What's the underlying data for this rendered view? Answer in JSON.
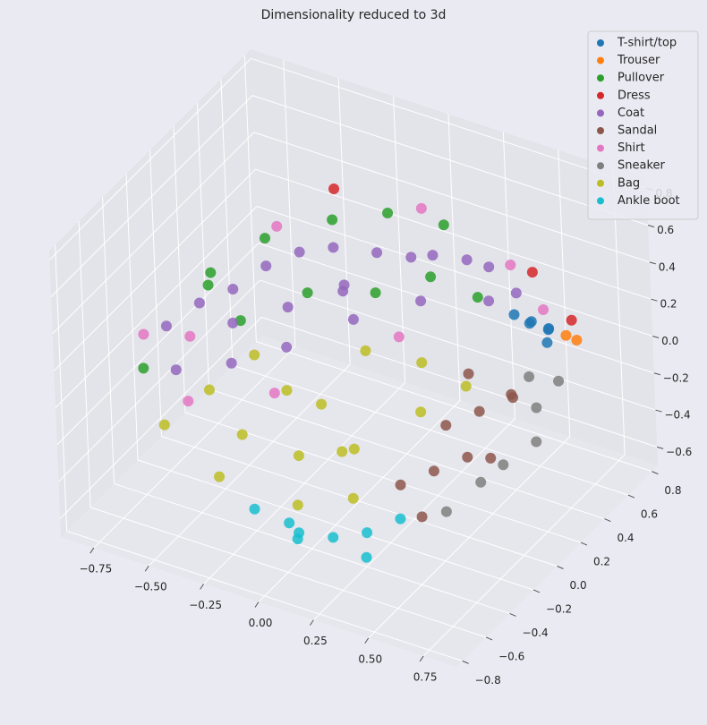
{
  "chart_data": {
    "type": "scatter3d",
    "title": "Dimensionality reduced to 3d",
    "xlim": [
      -0.9,
      0.9
    ],
    "ylim": [
      -0.85,
      0.85
    ],
    "zlim": [
      -0.7,
      0.85
    ],
    "xticks": [
      {
        "value": -0.75,
        "label": "−0.75"
      },
      {
        "value": -0.5,
        "label": "−0.50"
      },
      {
        "value": -0.25,
        "label": "−0.25"
      },
      {
        "value": 0,
        "label": "0.00"
      },
      0.25,
      {
        "value": 0.5,
        "label": "0.50"
      },
      0.75
    ],
    "yticks": [
      {
        "value": -0.8,
        "label": "−0.8"
      },
      {
        "value": -0.6,
        "label": "−0.6"
      },
      {
        "value": -0.4,
        "label": "−0.4"
      },
      {
        "value": -0.2,
        "label": "−0.2"
      },
      {
        "value": 0,
        "label": "0.0"
      },
      0.2,
      0.4,
      0.6,
      0.8
    ],
    "zticks": [
      {
        "value": -0.6,
        "label": "−0.6"
      },
      {
        "value": -0.4,
        "label": "−0.4"
      },
      {
        "value": -0.2,
        "label": "−0.2"
      },
      {
        "value": 0,
        "label": "0.0"
      },
      0.2,
      0.4,
      0.6,
      0.8
    ],
    "grid": true,
    "legend": "upper right",
    "series": [
      {
        "name": "T-shirt/top",
        "color": "#1f77b4",
        "x": [
          0.6,
          0.65,
          0.55,
          0.62,
          0.58,
          0.68
        ],
        "y": [
          0.4,
          0.45,
          0.35,
          0.5,
          0.42,
          0.38
        ],
        "z": [
          0.25,
          0.2,
          0.3,
          0.15,
          0.22,
          0.18
        ]
      },
      {
        "name": "Trouser",
        "color": "#ff7f0e",
        "x": [
          0.7,
          0.72
        ],
        "y": [
          0.5,
          0.55
        ],
        "z": [
          0.15,
          0.1
        ]
      },
      {
        "name": "Pullover",
        "color": "#2ca02c",
        "x": [
          -0.5,
          -0.3,
          -0.1,
          0.1,
          -0.6,
          -0.7,
          0.2,
          -0.2,
          0.0,
          -0.4,
          0.3,
          -0.8
        ],
        "y": [
          0.2,
          0.4,
          0.5,
          0.6,
          -0.1,
          0.1,
          0.3,
          0.0,
          0.2,
          -0.2,
          0.5,
          -0.3
        ],
        "z": [
          0.4,
          0.45,
          0.5,
          0.45,
          0.3,
          0.2,
          0.4,
          0.35,
          0.3,
          0.25,
          0.2,
          -0.1
        ]
      },
      {
        "name": "Dress",
        "color": "#d62728",
        "x": [
          0.7,
          0.5,
          -0.4
        ],
        "y": [
          0.55,
          0.6,
          0.6
        ],
        "z": [
          0.2,
          0.35,
          0.45
        ]
      },
      {
        "name": "Coat",
        "color": "#9467bd",
        "x": [
          -0.8,
          -0.7,
          -0.6,
          -0.5,
          -0.4,
          -0.3,
          -0.2,
          -0.1,
          0,
          0.1,
          0.2,
          0.3,
          -0.65,
          -0.45,
          -0.25,
          -0.05,
          0.15,
          -0.55,
          -0.35,
          -0.15,
          0.35,
          0.45
        ],
        "y": [
          -0.1,
          0,
          0.1,
          0.2,
          0.3,
          0.4,
          0.3,
          0.4,
          0.5,
          0.5,
          0.6,
          0.6,
          -0.3,
          -0.2,
          -0.1,
          0.1,
          0.3,
          0.0,
          0.1,
          0.2,
          0.5,
          0.55
        ],
        "z": [
          0.0,
          0.1,
          0.15,
          0.25,
          0.3,
          0.3,
          0.2,
          0.35,
          0.3,
          0.35,
          0.3,
          0.3,
          -0.05,
          0.0,
          0.1,
          0.2,
          0.25,
          0.05,
          0.15,
          0.25,
          0.2,
          0.25
        ]
      },
      {
        "name": "Sandal",
        "color": "#8c564b",
        "x": [
          0.3,
          0.4,
          0.5,
          0.35,
          0.45,
          0.55,
          0.25,
          0.4,
          0.5,
          0.3
        ],
        "y": [
          0.2,
          0.3,
          0.4,
          0.0,
          0.1,
          0.3,
          -0.1,
          -0.2,
          0.2,
          0.4
        ],
        "z": [
          -0.3,
          -0.25,
          -0.2,
          -0.4,
          -0.35,
          -0.1,
          -0.45,
          -0.5,
          -0.4,
          -0.15
        ]
      },
      {
        "name": "Shirt",
        "color": "#e377c2",
        "x": [
          -0.85,
          -0.75,
          -0.5,
          0.0,
          0.4,
          0.6,
          -0.2,
          0.1,
          -0.6
        ],
        "y": [
          -0.2,
          0.0,
          0.3,
          0.6,
          0.6,
          0.5,
          -0.3,
          0.2,
          -0.3
        ],
        "z": [
          0.0,
          -0.1,
          0.4,
          0.5,
          0.35,
          0.25,
          0.0,
          0.1,
          -0.2
        ]
      },
      {
        "name": "Sneaker",
        "color": "#7f7f7f",
        "x": [
          0.55,
          0.6,
          0.5,
          0.45,
          0.6,
          0.4,
          0.55
        ],
        "y": [
          0.5,
          0.4,
          0.3,
          0.2,
          0.6,
          0.0,
          0.45
        ],
        "z": [
          -0.3,
          -0.4,
          -0.5,
          -0.55,
          -0.2,
          -0.6,
          -0.1
        ]
      },
      {
        "name": "Bag",
        "color": "#bcbd22",
        "x": [
          -0.5,
          -0.3,
          -0.1,
          0.1,
          0.3,
          -0.4,
          -0.2,
          0.0,
          0.2,
          -0.3,
          0.0,
          0.2,
          0.4,
          -0.1,
          0.1,
          -0.6
        ],
        "y": [
          -0.3,
          -0.4,
          -0.3,
          -0.2,
          0.0,
          -0.1,
          -0.2,
          -0.5,
          -0.4,
          -0.6,
          0.1,
          0.2,
          0.2,
          -0.1,
          -0.3,
          -0.5
        ],
        "z": [
          -0.1,
          -0.2,
          -0.3,
          -0.25,
          -0.1,
          0.0,
          -0.05,
          -0.4,
          -0.35,
          -0.3,
          0.05,
          0.0,
          -0.05,
          -0.15,
          -0.2,
          -0.2
        ]
      },
      {
        "name": "Ankle boot",
        "color": "#17becf",
        "x": [
          -0.1,
          0.0,
          0.1,
          0.2,
          0.3,
          -0.2,
          0.05,
          0.25
        ],
        "y": [
          -0.4,
          -0.5,
          -0.4,
          -0.3,
          -0.2,
          -0.5,
          -0.6,
          -0.4
        ],
        "z": [
          -0.6,
          -0.55,
          -0.6,
          -0.6,
          -0.55,
          -0.5,
          -0.5,
          -0.65
        ]
      }
    ]
  }
}
